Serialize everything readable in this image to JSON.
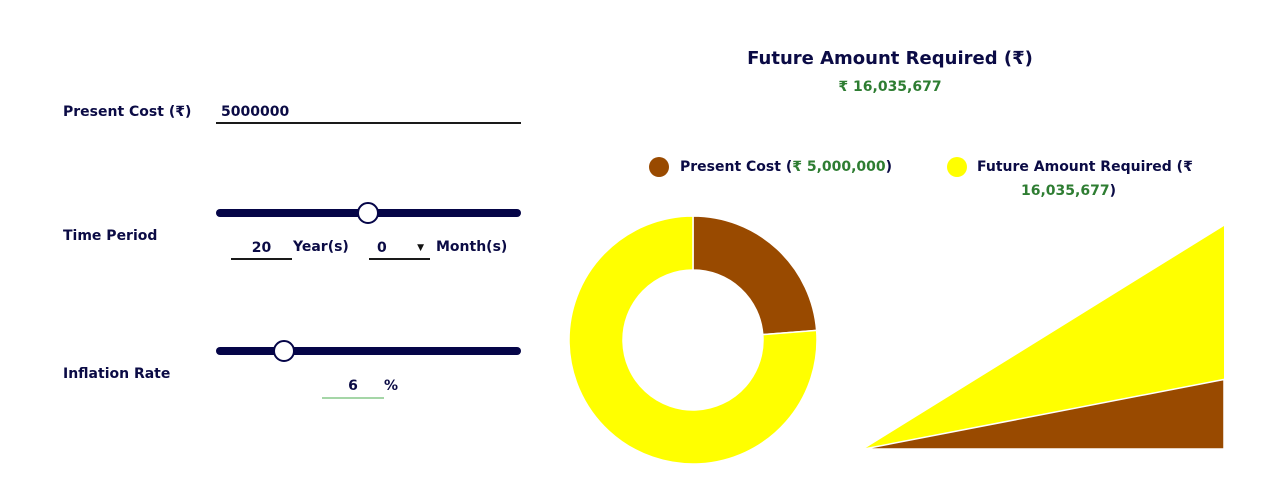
{
  "form": {
    "present_cost_label": "Present Cost (₹)",
    "present_cost_value": "5000000",
    "time_period_label": "Time Period",
    "years_value": "20",
    "years_unit": "Year(s)",
    "months_value": "0",
    "months_unit": "Month(s)",
    "time_slider_value_years": 20,
    "inflation_label": "Inflation Rate",
    "inflation_value": "6",
    "inflation_unit": "%",
    "inflation_slider_value": 6
  },
  "result": {
    "title": "Future Amount Required (₹)",
    "future_amount": "₹ 16,035,677"
  },
  "legend": [
    {
      "label_prefix": "Present Cost (",
      "value": "₹ 5,000,000",
      "label_suffix": ")",
      "color": "#994a00"
    },
    {
      "label_prefix": "Future Amount Required (₹",
      "value": "16,035,677",
      "label_suffix": ")",
      "color": "#ffff00"
    }
  ],
  "chart_data": {
    "type": "pie",
    "series": [
      {
        "name": "Present Cost",
        "value": 5000000,
        "color": "#994a00"
      },
      {
        "name": "Future Amount Required",
        "value": 16035677,
        "color": "#ffff00"
      }
    ]
  }
}
